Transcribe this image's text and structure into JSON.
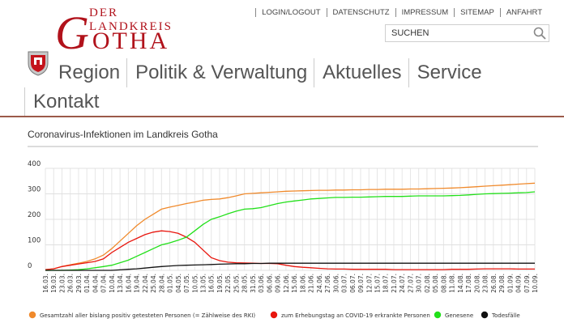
{
  "header": {
    "logo_subtitle": "DER LANDKREIS",
    "logo_initial": "G",
    "logo_rest": "OTHA"
  },
  "topnav": [
    {
      "label": "LOGIN/LOGOUT"
    },
    {
      "label": "DATENSCHUTZ"
    },
    {
      "label": "IMPRESSUM"
    },
    {
      "label": "SITEMAP"
    },
    {
      "label": "ANFAHRT"
    }
  ],
  "search": {
    "placeholder": "SUCHEN",
    "value": ""
  },
  "mainnav": [
    {
      "label": "Region"
    },
    {
      "label": "Politik & Verwaltung"
    },
    {
      "label": "Aktuelles"
    },
    {
      "label": "Service"
    },
    {
      "label": "Kontakt"
    }
  ],
  "chart_title": "Coronavirus-Infektionen im Landkreis Gotha",
  "colors": {
    "brand_red": "#b1121b",
    "orange": "#f08a2c",
    "red": "#e8160e",
    "green": "#22e01a",
    "black": "#111111"
  },
  "chart_data": {
    "type": "line",
    "ylim": [
      0,
      400
    ],
    "yticks": [
      0,
      100,
      200,
      300,
      400
    ],
    "grid": true,
    "legend_position": "bottom",
    "x": [
      "16.03.",
      "19.03.",
      "23.03.",
      "26.03.",
      "29.03.",
      "01.04.",
      "04.04.",
      "07.04.",
      "10.04.",
      "13.04.",
      "16.04.",
      "19.04.",
      "22.04.",
      "25.04.",
      "28.04.",
      "01.05.",
      "04.05.",
      "07.05.",
      "10.05.",
      "13.05.",
      "16.05.",
      "19.05.",
      "22.05.",
      "25.05.",
      "28.05.",
      "31.05.",
      "03.06.",
      "06.06.",
      "09.06.",
      "12.06.",
      "15.06.",
      "18.06.",
      "21.06.",
      "24.06.",
      "27.06.",
      "30.06.",
      "03.07.",
      "06.07.",
      "09.07.",
      "12.07.",
      "15.07.",
      "18.07.",
      "21.07.",
      "24.07.",
      "27.07.",
      "30.07.",
      "02.08.",
      "05.08.",
      "08.08.",
      "11.08.",
      "14.08.",
      "17.08.",
      "20.08.",
      "23.08.",
      "26.08.",
      "29.08.",
      "01.09.",
      "04.09.",
      "07.09.",
      "10.09."
    ],
    "series": [
      {
        "name": "Gesamtzahl aller bislang positiv getesteten Personen (= Zählweise des RKI)",
        "color": "#f08a2c",
        "values": [
          3,
          6,
          15,
          22,
          28,
          35,
          45,
          60,
          85,
          115,
          145,
          175,
          200,
          220,
          240,
          248,
          255,
          262,
          268,
          275,
          278,
          280,
          285,
          292,
          300,
          302,
          304,
          306,
          308,
          310,
          311,
          312,
          313,
          314,
          314,
          315,
          315,
          316,
          316,
          317,
          317,
          318,
          318,
          318,
          319,
          319,
          320,
          321,
          322,
          323,
          324,
          326,
          328,
          330,
          332,
          334,
          336,
          338,
          340,
          342
        ]
      },
      {
        "name": "zum Erhebungstag an COVID-19 erkrankte Personen",
        "color": "#e8160e",
        "values": [
          3,
          6,
          15,
          20,
          25,
          30,
          35,
          45,
          70,
          90,
          110,
          125,
          140,
          150,
          155,
          152,
          145,
          130,
          110,
          80,
          50,
          38,
          32,
          30,
          29,
          28,
          27,
          27,
          26,
          20,
          15,
          12,
          10,
          8,
          6,
          5,
          5,
          4,
          4,
          4,
          4,
          4,
          3,
          3,
          3,
          3,
          3,
          3,
          3,
          4,
          4,
          4,
          5,
          6,
          6,
          6,
          6,
          5,
          5,
          5
        ]
      },
      {
        "name": "Genesene",
        "color": "#22e01a",
        "values": [
          0,
          0,
          0,
          1,
          3,
          6,
          10,
          15,
          20,
          30,
          40,
          55,
          70,
          85,
          100,
          108,
          118,
          130,
          155,
          180,
          200,
          210,
          222,
          232,
          240,
          242,
          246,
          254,
          262,
          268,
          272,
          276,
          280,
          282,
          284,
          286,
          286,
          287,
          287,
          288,
          289,
          290,
          290,
          290,
          291,
          292,
          292,
          292,
          292,
          293,
          294,
          296,
          298,
          300,
          301,
          302,
          303,
          304,
          305,
          308
        ]
      },
      {
        "name": "Todesfälle",
        "color": "#111111",
        "values": [
          0,
          0,
          0,
          0,
          0,
          0,
          0,
          0,
          0,
          2,
          4,
          6,
          9,
          12,
          15,
          17,
          19,
          20,
          21,
          22,
          23,
          24,
          25,
          26,
          26,
          27,
          27,
          28,
          28,
          28,
          28,
          28,
          28,
          28,
          28,
          28,
          28,
          28,
          28,
          28,
          28,
          28,
          28,
          28,
          28,
          28,
          28,
          28,
          28,
          28,
          28,
          28,
          28,
          28,
          28,
          28,
          28,
          28,
          28,
          28
        ]
      }
    ]
  }
}
